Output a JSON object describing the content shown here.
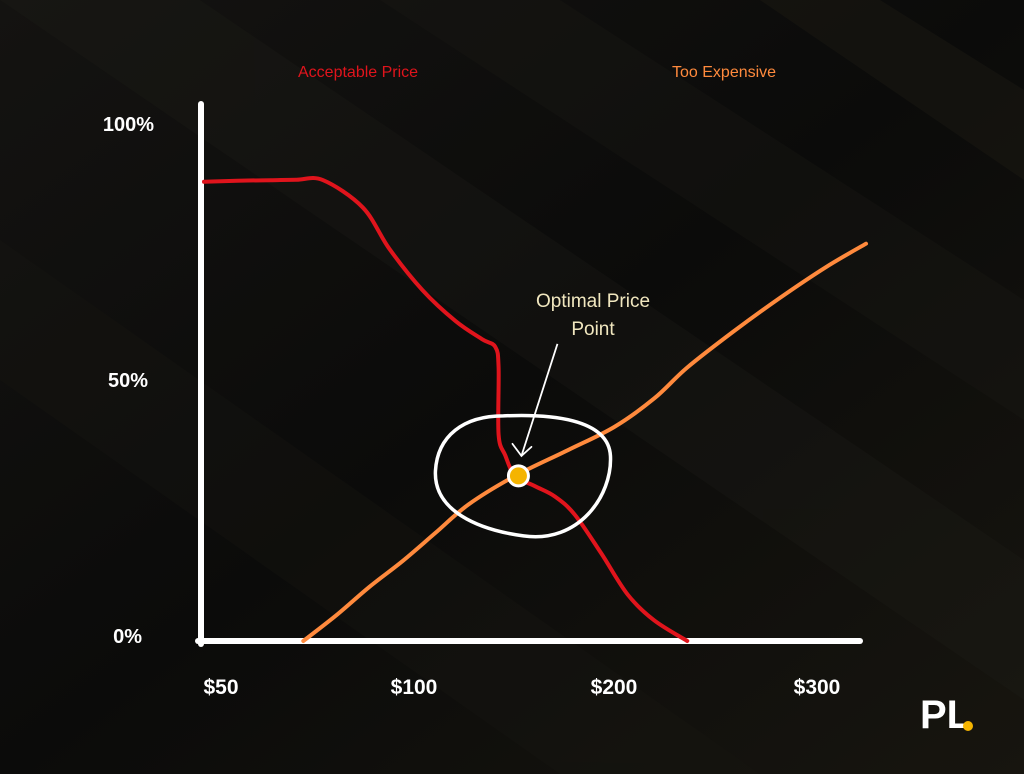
{
  "chart_data": {
    "type": "line",
    "title": "",
    "xlabel": "",
    "ylabel": "",
    "x_tick_labels": [
      "$50",
      "$100",
      "$200",
      "$300"
    ],
    "y_tick_labels": [
      "0%",
      "50%",
      "100%"
    ],
    "ylim": [
      0,
      100
    ],
    "grid": false,
    "legend_placement": "top",
    "series": [
      {
        "name": "Acceptable Price",
        "color": "#e0141c",
        "points": [
          [
            0.0,
            89
          ],
          [
            0.05,
            89.2
          ],
          [
            0.1,
            89.3
          ],
          [
            0.14,
            89.4
          ],
          [
            0.18,
            89.3
          ],
          [
            0.24,
            84
          ],
          [
            0.28,
            76
          ],
          [
            0.33,
            68
          ],
          [
            0.38,
            62
          ],
          [
            0.42,
            58.5
          ],
          [
            0.44,
            57
          ],
          [
            0.445,
            53
          ],
          [
            0.445,
            40
          ],
          [
            0.455,
            36
          ],
          [
            0.47,
            32
          ],
          [
            0.5,
            30
          ],
          [
            0.53,
            28
          ],
          [
            0.56,
            24.5
          ],
          [
            0.6,
            17
          ],
          [
            0.64,
            9
          ],
          [
            0.68,
            4
          ],
          [
            0.73,
            0
          ]
        ]
      },
      {
        "name": "Too Expensive",
        "color": "#ff8a3d",
        "points": [
          [
            0.15,
            0
          ],
          [
            0.2,
            5
          ],
          [
            0.25,
            10.5
          ],
          [
            0.3,
            15.5
          ],
          [
            0.35,
            21
          ],
          [
            0.4,
            26.5
          ],
          [
            0.47,
            32
          ],
          [
            0.55,
            37
          ],
          [
            0.62,
            41.5
          ],
          [
            0.68,
            47
          ],
          [
            0.73,
            53
          ],
          [
            0.8,
            60
          ],
          [
            0.87,
            66.5
          ],
          [
            0.94,
            72.5
          ],
          [
            1.0,
            77
          ]
        ]
      }
    ],
    "annotations": [
      {
        "text": "Optimal Price Point",
        "x": 0.475,
        "y": 32,
        "marker_color": "#f5b400"
      }
    ]
  },
  "legend": {
    "acceptable": "Acceptable Price",
    "expensive": "Too Expensive"
  },
  "annotation": {
    "line1": "Optimal Price",
    "line2": "Point"
  },
  "y_ticks": {
    "t0": "0%",
    "t50": "50%",
    "t100": "100%"
  },
  "x_ticks": {
    "t50": "$50",
    "t100": "$100",
    "t200": "$200",
    "t300": "$300"
  },
  "logo": {
    "text": "PL",
    "icon": "pl-logo-icon",
    "accent": "#f5b400"
  }
}
